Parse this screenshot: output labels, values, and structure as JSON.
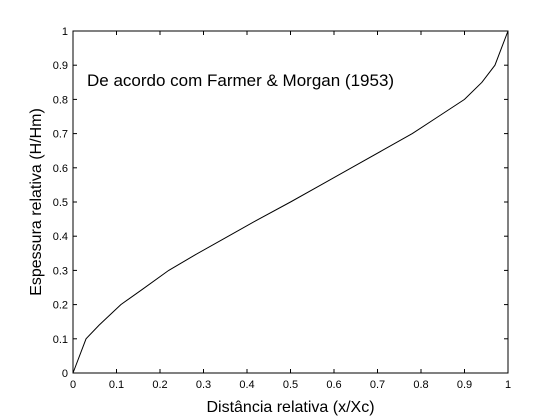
{
  "chart_data": {
    "type": "line",
    "title": "",
    "xlabel": "Distância relativa (x/Xc)",
    "ylabel": "Espessura relativa (H/Hm)",
    "xlim": [
      0,
      1
    ],
    "ylim": [
      0,
      1
    ],
    "xticks": [
      "0",
      "0.1",
      "0.2",
      "0.3",
      "0.4",
      "0.5",
      "0.6",
      "0.7",
      "0.8",
      "0.9",
      "1"
    ],
    "yticks": [
      "0",
      "0.1",
      "0.2",
      "0.3",
      "0.4",
      "0.5",
      "0.6",
      "0.7",
      "0.8",
      "0.9",
      "1"
    ],
    "grid": false,
    "annotation": "De acordo com Farmer & Morgan (1953)",
    "line_color": "#000000",
    "series": [
      {
        "x": [
          0.0,
          0.03,
          0.06,
          0.11,
          0.16,
          0.22,
          0.28,
          0.35,
          0.42,
          0.5,
          0.57,
          0.64,
          0.71,
          0.78,
          0.84,
          0.9,
          0.94,
          0.97,
          0.985,
          1.0
        ],
        "y": [
          0.0,
          0.1,
          0.14,
          0.2,
          0.245,
          0.3,
          0.345,
          0.395,
          0.445,
          0.5,
          0.55,
          0.6,
          0.65,
          0.7,
          0.75,
          0.8,
          0.85,
          0.9,
          0.95,
          1.0
        ]
      }
    ]
  }
}
